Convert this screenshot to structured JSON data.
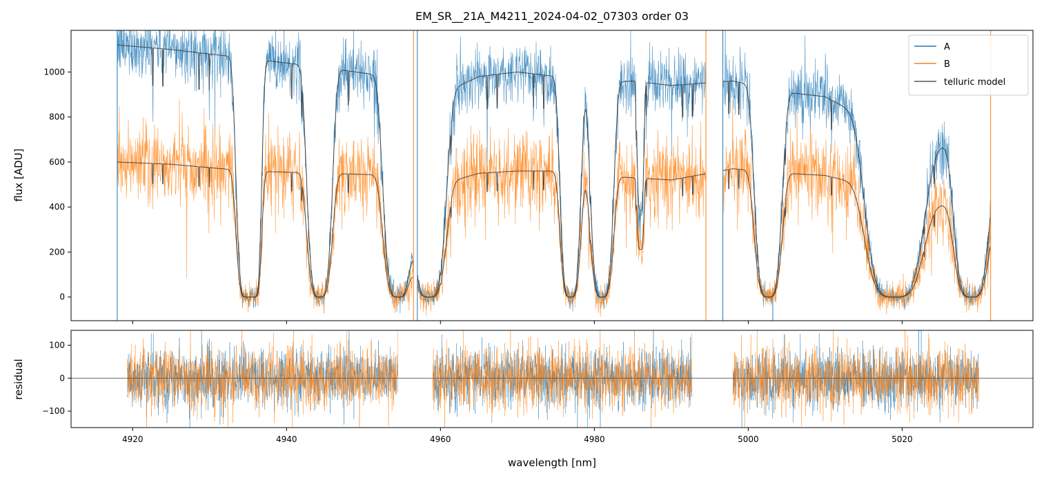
{
  "chart_data": [
    {
      "type": "line",
      "panel": "top",
      "title": "EM_SR__21A_M4211_2024-04-02_07303  order 03",
      "xlabel": "",
      "ylabel": "flux [ADU]",
      "xlim": [
        4912,
        5037
      ],
      "ylim": [
        -105,
        1185
      ],
      "xticks": [
        4920,
        4940,
        4960,
        4980,
        5000,
        5020
      ],
      "yticks": [
        0,
        200,
        400,
        600,
        800,
        1000
      ],
      "legend": {
        "placement": "top-right",
        "entries": [
          {
            "name": "A",
            "color": "#1f77b4"
          },
          {
            "name": "B",
            "color": "#ff7f0e"
          },
          {
            "name": "telluric model",
            "color": "#555555"
          }
        ]
      },
      "segments": [
        {
          "x_range": [
            4918.0,
            4956.5
          ]
        },
        {
          "x_range": [
            4957.0,
            4994.5
          ]
        },
        {
          "x_range": [
            4996.7,
            5031.5
          ]
        }
      ],
      "series": [
        {
          "name": "A",
          "color": "#1f77b4",
          "continuum": [
            [
              4918,
              1120
            ],
            [
              4925,
              1100
            ],
            [
              4935,
              1060
            ],
            [
              4945,
              1020
            ],
            [
              4955,
              970
            ],
            [
              4960,
              900
            ],
            [
              4965,
              980
            ],
            [
              4970,
              1000
            ],
            [
              4975,
              980
            ],
            [
              4980,
              950
            ],
            [
              4985,
              960
            ],
            [
              4990,
              940
            ],
            [
              4998,
              960
            ],
            [
              5005,
              910
            ],
            [
              5010,
              890
            ],
            [
              5015,
              800
            ],
            [
              5018,
              600
            ],
            [
              5026,
              680
            ],
            [
              5031,
              600
            ]
          ],
          "noise": 70
        },
        {
          "name": "B",
          "color": "#ff7f0e",
          "continuum": [
            [
              4918,
              600
            ],
            [
              4925,
              590
            ],
            [
              4935,
              560
            ],
            [
              4945,
              550
            ],
            [
              4955,
              540
            ],
            [
              4960,
              500
            ],
            [
              4965,
              550
            ],
            [
              4970,
              560
            ],
            [
              4975,
              560
            ],
            [
              4980,
              540
            ],
            [
              4985,
              530
            ],
            [
              4990,
              520
            ],
            [
              4998,
              570
            ],
            [
              5005,
              550
            ],
            [
              5010,
              540
            ],
            [
              5015,
              500
            ],
            [
              5018,
              420
            ],
            [
              5026,
              410
            ],
            [
              5031,
              380
            ]
          ],
          "noise": 90
        },
        {
          "name": "telluric model",
          "color": "#444444",
          "bands": [
            {
              "center": 4934.8,
              "width": 0.9,
              "depth": 1.0
            },
            {
              "center": 4935.7,
              "width": 0.7,
              "depth": 1.0
            },
            {
              "center": 4944.3,
              "width": 1.1,
              "depth": 1.0
            },
            {
              "center": 4954.5,
              "width": 1.3,
              "depth": 1.0
            },
            {
              "center": 4958.5,
              "width": 1.5,
              "depth": 1.0
            },
            {
              "center": 4976.9,
              "width": 0.9,
              "depth": 1.0
            },
            {
              "center": 4981.0,
              "width": 1.0,
              "depth": 1.0
            },
            {
              "center": 4986.0,
              "width": 0.3,
              "depth": 0.6
            },
            {
              "center": 5002.6,
              "width": 1.2,
              "depth": 1.0
            },
            {
              "center": 5019.0,
              "width": 2.5,
              "depth": 1.0
            },
            {
              "center": 5029.0,
              "width": 1.5,
              "depth": 1.0
            }
          ]
        }
      ]
    },
    {
      "type": "line",
      "panel": "bottom",
      "xlabel": "wavelength [nm]",
      "ylabel": "residual",
      "xlim": [
        4912,
        5037
      ],
      "ylim": [
        -150,
        145
      ],
      "xticks": [
        4920,
        4940,
        4960,
        4980,
        5000,
        5020
      ],
      "yticks": [
        -100,
        0,
        100
      ],
      "segments": [
        {
          "x_range": [
            4919.3,
            4954.5
          ]
        },
        {
          "x_range": [
            4959.0,
            4992.7
          ]
        },
        {
          "x_range": [
            4998.0,
            5030.0
          ]
        }
      ],
      "series": [
        {
          "name": "A",
          "color": "#1f77b4",
          "amplitude": 55
        },
        {
          "name": "B",
          "color": "#ff7f0e",
          "amplitude": 60
        }
      ],
      "zero_line": 0
    }
  ]
}
